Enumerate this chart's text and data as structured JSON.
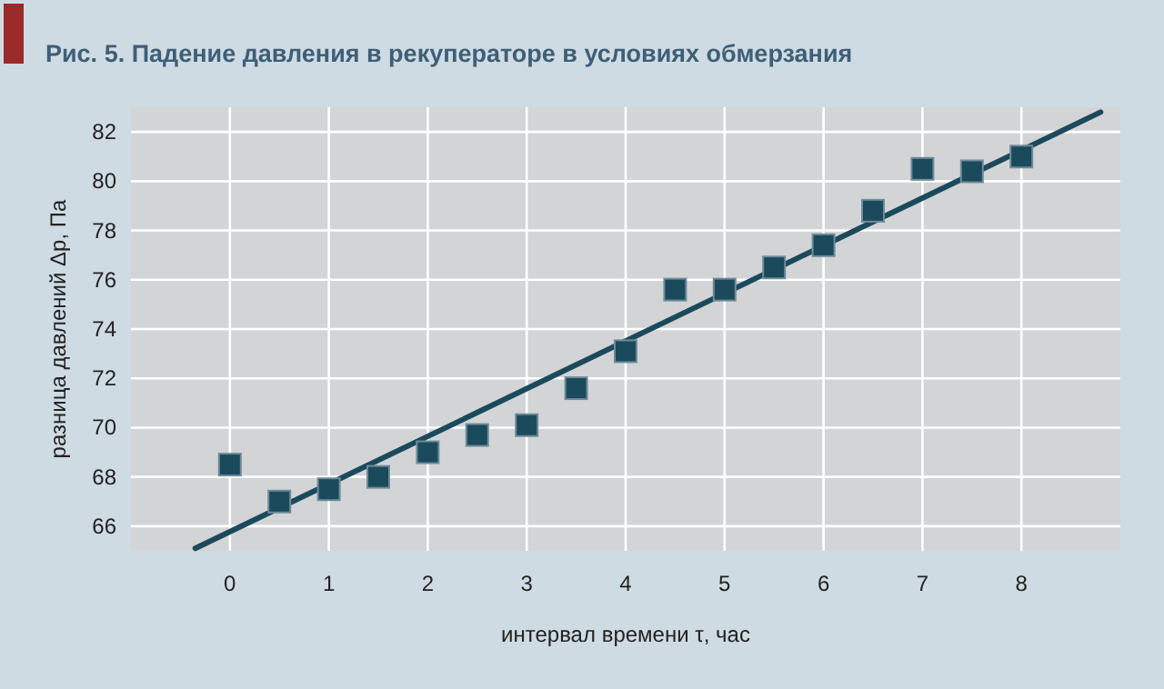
{
  "chart_data": {
    "type": "scatter",
    "title": "Рис. 5. Падение давления в рекуператоре в условиях обмерзания",
    "xlabel": "интервал времени τ, час",
    "ylabel": "разница давлений Δp, Па",
    "x": [
      0,
      0.5,
      1,
      1.5,
      2,
      2.5,
      3,
      3.5,
      4,
      4.5,
      5,
      5.5,
      6,
      6.5,
      7,
      7.5,
      8
    ],
    "series": [
      {
        "color": "#1b4a5c",
        "values": [
          68.5,
          67.0,
          67.5,
          68.0,
          69.0,
          69.7,
          70.1,
          71.6,
          73.1,
          75.6,
          75.6,
          76.5,
          77.4,
          78.8,
          80.5,
          80.4,
          81.0
        ]
      },
      {
        "type": "line",
        "color": "#1b4a5c",
        "marker": "none",
        "x": [
          -0.35,
          8.8
        ],
        "values": [
          65.1,
          82.8
        ]
      }
    ],
    "xlim": [
      -1,
      9
    ],
    "xticks": [
      0,
      1,
      2,
      3,
      4,
      5,
      6,
      7,
      8
    ],
    "ylim": [
      65,
      83
    ],
    "yticks": [
      66,
      68,
      70,
      72,
      74,
      76,
      78,
      80,
      82
    ],
    "grid": true,
    "marker": "square",
    "line_style": "solid"
  }
}
